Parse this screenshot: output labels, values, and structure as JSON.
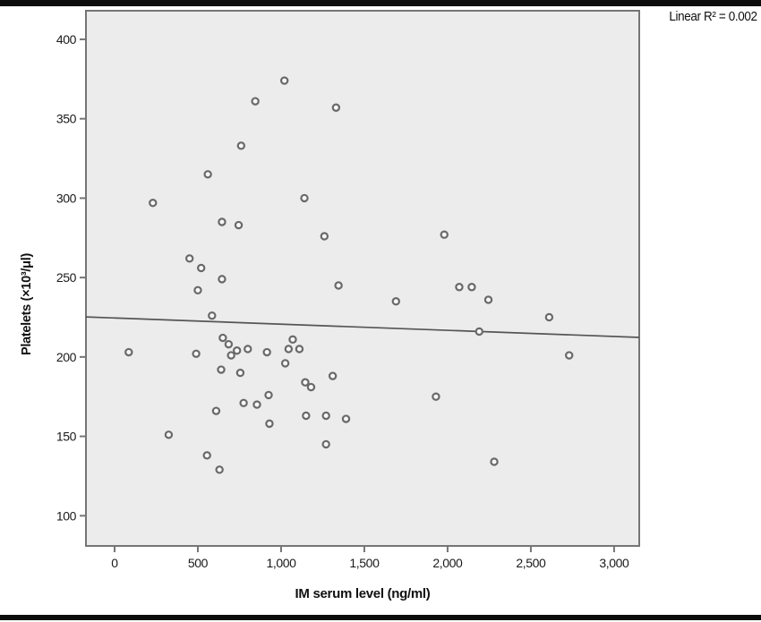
{
  "figure": {
    "annotation": "Linear R² = 0.002",
    "colors": {
      "plot_bg": "#ececec",
      "plot_border": "#757575",
      "marker_stroke": "#696969",
      "marker_fill": "#f7f7f7",
      "fit_line": "#555555",
      "text": "#1a1a1a",
      "rule": "#0d0d0d"
    }
  },
  "chart_data": {
    "type": "scatter",
    "title": "",
    "xlabel": "IM serum level (ng/ml)",
    "ylabel": "Platelets (×10³/μl)",
    "legend": null,
    "grid": false,
    "x_ticks": [
      0,
      500,
      1000,
      1500,
      2000,
      2500,
      3000
    ],
    "x_tick_labels": [
      "0",
      "500",
      "1,000",
      "1,500",
      "2,000",
      "2,500",
      "3,000"
    ],
    "y_ticks": [
      100,
      150,
      200,
      250,
      300,
      350,
      400
    ],
    "y_tick_labels": [
      "100",
      "150",
      "200",
      "250",
      "300",
      "350",
      "400"
    ],
    "xlim": [
      -172,
      3151
    ],
    "ylim": [
      81,
      418
    ],
    "points": [
      [
        85,
        203
      ],
      [
        230,
        297
      ],
      [
        325,
        151
      ],
      [
        450,
        262
      ],
      [
        490,
        202
      ],
      [
        500,
        242
      ],
      [
        520,
        256
      ],
      [
        555,
        138
      ],
      [
        560,
        315
      ],
      [
        585,
        226
      ],
      [
        610,
        166
      ],
      [
        630,
        129
      ],
      [
        640,
        192
      ],
      [
        645,
        285
      ],
      [
        645,
        249
      ],
      [
        650,
        212
      ],
      [
        685,
        208
      ],
      [
        700,
        201
      ],
      [
        735,
        204
      ],
      [
        745,
        283
      ],
      [
        755,
        190
      ],
      [
        760,
        333
      ],
      [
        775,
        171
      ],
      [
        800,
        205
      ],
      [
        845,
        361
      ],
      [
        855,
        170
      ],
      [
        915,
        203
      ],
      [
        925,
        176
      ],
      [
        930,
        158
      ],
      [
        1020,
        374
      ],
      [
        1025,
        196
      ],
      [
        1045,
        205
      ],
      [
        1070,
        211
      ],
      [
        1110,
        205
      ],
      [
        1140,
        300
      ],
      [
        1145,
        184
      ],
      [
        1150,
        163
      ],
      [
        1180,
        181
      ],
      [
        1260,
        276
      ],
      [
        1270,
        163
      ],
      [
        1270,
        145
      ],
      [
        1310,
        188
      ],
      [
        1330,
        357
      ],
      [
        1345,
        245
      ],
      [
        1390,
        161
      ],
      [
        1690,
        235
      ],
      [
        1930,
        175
      ],
      [
        1980,
        277
      ],
      [
        2070,
        244
      ],
      [
        2145,
        244
      ],
      [
        2190,
        216
      ],
      [
        2245,
        236
      ],
      [
        2280,
        134
      ],
      [
        2610,
        225
      ],
      [
        2730,
        201
      ]
    ],
    "fit_line": {
      "r_squared": 0.002,
      "x1": -172,
      "y1": 225.2,
      "x2": 3151,
      "y2": 212.3
    }
  }
}
